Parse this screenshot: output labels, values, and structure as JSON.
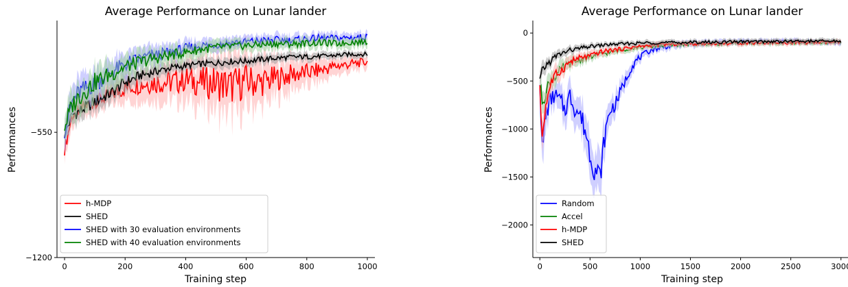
{
  "chart_data": [
    {
      "type": "line",
      "title": "Average Performance on Lunar lander",
      "xlabel": "Training step",
      "ylabel": "Performances",
      "xlim": [
        -25,
        1025
      ],
      "ylim": [
        -1200,
        30
      ],
      "xticks": [
        0,
        200,
        400,
        600,
        800,
        1000
      ],
      "yticks": [
        -1200,
        -550
      ],
      "grid": false,
      "legend_position": "lower-left",
      "series": [
        {
          "name": "h-MDP",
          "color": "#ff0000",
          "band_color": "#ffb0b0",
          "x": [
            0,
            25,
            50,
            100,
            150,
            200,
            250,
            300,
            350,
            400,
            450,
            500,
            550,
            600,
            650,
            700,
            750,
            800,
            850,
            900,
            950,
            1000
          ],
          "y": [
            -640,
            -460,
            -430,
            -390,
            -360,
            -320,
            -300,
            -290,
            -290,
            -275,
            -290,
            -295,
            -310,
            -285,
            -290,
            -270,
            -250,
            -240,
            -225,
            -205,
            -195,
            -185
          ],
          "band": [
            55,
            70,
            70,
            65,
            70,
            80,
            95,
            110,
            120,
            130,
            140,
            170,
            180,
            170,
            140,
            120,
            100,
            85,
            70,
            55,
            45,
            40
          ]
        },
        {
          "name": "SHED",
          "color": "#000000",
          "band_color": "#a0a0a0",
          "x": [
            0,
            25,
            50,
            100,
            150,
            200,
            250,
            300,
            350,
            400,
            450,
            500,
            550,
            600,
            650,
            700,
            750,
            800,
            850,
            900,
            950,
            1000
          ],
          "y": [
            -560,
            -460,
            -440,
            -390,
            -350,
            -290,
            -255,
            -235,
            -215,
            -205,
            -195,
            -190,
            -182,
            -180,
            -172,
            -165,
            -160,
            -158,
            -155,
            -150,
            -145,
            -145
          ],
          "band": [
            55,
            60,
            60,
            60,
            55,
            55,
            45,
            40,
            35,
            32,
            30,
            30,
            30,
            28,
            28,
            25,
            25,
            25,
            22,
            22,
            20,
            20
          ]
        },
        {
          "name": "SHED with 30 evaluation environments",
          "color": "#0000ff",
          "band_color": "#a8a8ff",
          "x": [
            0,
            25,
            50,
            100,
            150,
            200,
            250,
            300,
            350,
            400,
            450,
            500,
            550,
            600,
            650,
            700,
            750,
            800,
            850,
            900,
            950,
            1000
          ],
          "y": [
            -540,
            -390,
            -340,
            -300,
            -240,
            -200,
            -165,
            -150,
            -135,
            -115,
            -100,
            -95,
            -85,
            -80,
            -75,
            -70,
            -72,
            -65,
            -60,
            -62,
            -58,
            -55
          ],
          "band": [
            80,
            90,
            90,
            85,
            80,
            70,
            60,
            55,
            50,
            45,
            40,
            40,
            38,
            36,
            35,
            34,
            33,
            32,
            32,
            30,
            30,
            30
          ]
        },
        {
          "name": "SHED with 40 evaluation environments",
          "color": "#008000",
          "band_color": "#9ed09e",
          "x": [
            0,
            25,
            50,
            100,
            150,
            200,
            250,
            300,
            350,
            400,
            450,
            500,
            550,
            600,
            650,
            700,
            750,
            800,
            850,
            900,
            950,
            1000
          ],
          "y": [
            -520,
            -410,
            -360,
            -290,
            -250,
            -210,
            -185,
            -165,
            -150,
            -135,
            -120,
            -110,
            -105,
            -100,
            -95,
            -90,
            -92,
            -88,
            -85,
            -90,
            -82,
            -80
          ],
          "band": [
            85,
            95,
            95,
            90,
            80,
            70,
            62,
            56,
            52,
            46,
            42,
            40,
            38,
            36,
            35,
            34,
            33,
            32,
            32,
            31,
            30,
            30
          ]
        }
      ]
    },
    {
      "type": "line",
      "title": "Average Performance on Lunar lander",
      "xlabel": "Training step",
      "ylabel": "Performances",
      "xlim": [
        -70,
        3070
      ],
      "ylim": [
        -2340,
        130
      ],
      "xticks": [
        0,
        500,
        1000,
        1500,
        2000,
        2500,
        3000
      ],
      "yticks": [
        -2000,
        -1500,
        -1000,
        -500,
        0
      ],
      "grid": false,
      "legend_position": "lower-left",
      "series": [
        {
          "name": "Random",
          "color": "#0000ff",
          "band_color": "#a8a8ff",
          "x": [
            0,
            25,
            50,
            100,
            150,
            200,
            250,
            300,
            350,
            400,
            450,
            500,
            550,
            600,
            650,
            700,
            750,
            800,
            850,
            900,
            950,
            1000,
            1100,
            1200,
            1400,
            1600,
            1800,
            2000,
            2200,
            2400,
            2600,
            2800,
            3000
          ],
          "y": [
            -500,
            -1300,
            -900,
            -700,
            -650,
            -700,
            -800,
            -650,
            -780,
            -850,
            -1000,
            -1250,
            -1420,
            -1500,
            -1050,
            -800,
            -750,
            -620,
            -500,
            -380,
            -300,
            -250,
            -180,
            -150,
            -120,
            -110,
            -100,
            -95,
            -90,
            -85,
            -90,
            -95,
            -100
          ],
          "band": [
            100,
            250,
            200,
            150,
            150,
            160,
            180,
            180,
            190,
            200,
            220,
            250,
            260,
            250,
            200,
            150,
            130,
            110,
            100,
            80,
            70,
            60,
            50,
            45,
            40,
            38,
            36,
            34,
            32,
            32,
            32,
            32,
            32
          ]
        },
        {
          "name": "Accel",
          "color": "#008000",
          "band_color": "#9ed09e",
          "x": [
            0,
            25,
            50,
            100,
            150,
            200,
            250,
            300,
            350,
            400,
            450,
            500,
            600,
            700,
            800,
            900,
            1000,
            1100,
            1200,
            1400,
            1600,
            1800,
            2000,
            2200,
            2400,
            2600,
            2800,
            3000
          ],
          "y": [
            -550,
            -700,
            -650,
            -500,
            -450,
            -400,
            -350,
            -320,
            -300,
            -280,
            -260,
            -250,
            -220,
            -200,
            -180,
            -160,
            -150,
            -140,
            -130,
            -120,
            -115,
            -110,
            -105,
            -105,
            -100,
            -100,
            -98,
            -95
          ],
          "band": [
            120,
            150,
            130,
            110,
            100,
            90,
            80,
            70,
            65,
            60,
            55,
            50,
            45,
            40,
            38,
            36,
            34,
            32,
            30,
            30,
            30,
            30,
            30,
            30,
            30,
            30,
            30,
            30
          ]
        },
        {
          "name": "h-MDP",
          "color": "#ff0000",
          "band_color": "#ffb0b0",
          "x": [
            0,
            25,
            50,
            100,
            150,
            200,
            250,
            300,
            350,
            400,
            450,
            500,
            600,
            700,
            800,
            900,
            1000,
            1100,
            1200,
            1400,
            1600,
            1800,
            2000,
            2200,
            2400,
            2600,
            2800,
            3000
          ],
          "y": [
            -600,
            -1100,
            -800,
            -550,
            -450,
            -400,
            -350,
            -300,
            -280,
            -260,
            -250,
            -240,
            -200,
            -180,
            -170,
            -150,
            -140,
            -130,
            -120,
            -115,
            -110,
            -110,
            -105,
            -100,
            -100,
            -100,
            -98,
            -100
          ],
          "band": [
            120,
            200,
            150,
            110,
            100,
            90,
            80,
            70,
            65,
            60,
            55,
            50,
            45,
            40,
            38,
            36,
            34,
            32,
            30,
            30,
            30,
            30,
            30,
            30,
            30,
            30,
            30,
            30
          ]
        },
        {
          "name": "SHED",
          "color": "#000000",
          "band_color": "#a0a0a0",
          "x": [
            0,
            25,
            50,
            100,
            150,
            200,
            250,
            300,
            350,
            400,
            450,
            500,
            600,
            700,
            800,
            900,
            1000,
            1100,
            1200,
            1400,
            1600,
            1800,
            2000,
            2200,
            2400,
            2600,
            2800,
            3000
          ],
          "y": [
            -500,
            -400,
            -350,
            -300,
            -250,
            -220,
            -200,
            -180,
            -170,
            -160,
            -150,
            -140,
            -130,
            -120,
            -115,
            -110,
            -105,
            -100,
            -100,
            -100,
            -95,
            -95,
            -90,
            -90,
            -88,
            -85,
            -85,
            -85
          ],
          "band": [
            100,
            90,
            80,
            70,
            60,
            55,
            50,
            45,
            40,
            38,
            36,
            34,
            32,
            30,
            30,
            30,
            30,
            30,
            30,
            30,
            30,
            30,
            30,
            30,
            30,
            30,
            30,
            30
          ]
        }
      ]
    }
  ]
}
